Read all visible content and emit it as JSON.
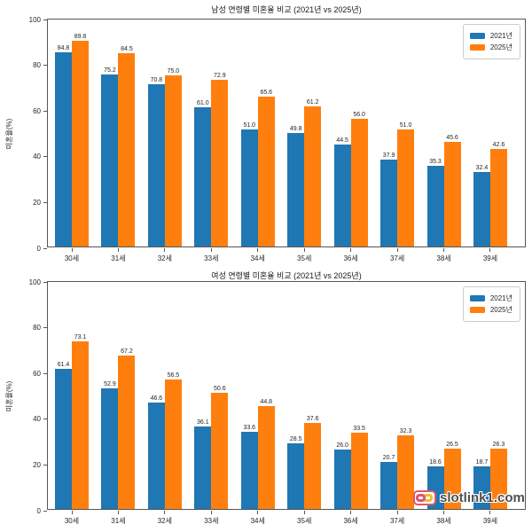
{
  "watermark": {
    "text": "slotlink1.com"
  },
  "colors": {
    "series_2021": "#1f77b4",
    "series_2025": "#ff7f0e",
    "axis": "#565656",
    "text": "#262626"
  },
  "chart_data": [
    {
      "type": "bar",
      "title": "남성 연령별 미혼율 비교 (2021년 vs 2025년)",
      "categories": [
        "30세",
        "31세",
        "32세",
        "33세",
        "34세",
        "35세",
        "36세",
        "37세",
        "38세",
        "39세"
      ],
      "series": [
        {
          "name": "2021년",
          "color": "#1f77b4",
          "values": [
            84.8,
            75.2,
            70.8,
            61.0,
            51.0,
            49.8,
            44.5,
            37.9,
            35.3,
            32.4
          ]
        },
        {
          "name": "2025년",
          "color": "#ff7f0e",
          "values": [
            89.8,
            84.5,
            75.0,
            72.9,
            65.6,
            61.2,
            56.0,
            51.0,
            45.6,
            42.6
          ]
        }
      ],
      "xlabel": "",
      "ylabel": "미혼율(%)",
      "ylim": [
        0,
        100
      ],
      "yticks": [
        0,
        20,
        40,
        60,
        80,
        100
      ],
      "grid": false,
      "legend_position": "upper right",
      "value_labels": true
    },
    {
      "type": "bar",
      "title": "여성 연령별 미혼율 비교 (2021년 vs 2025년)",
      "categories": [
        "30세",
        "31세",
        "32세",
        "33세",
        "34세",
        "35세",
        "36세",
        "37세",
        "38세",
        "39세"
      ],
      "series": [
        {
          "name": "2021년",
          "color": "#1f77b4",
          "values": [
            61.4,
            52.9,
            46.6,
            36.1,
            33.6,
            28.5,
            26.0,
            20.7,
            18.6,
            18.7
          ]
        },
        {
          "name": "2025년",
          "color": "#ff7f0e",
          "values": [
            73.1,
            67.2,
            56.5,
            50.6,
            44.8,
            37.6,
            33.5,
            32.3,
            26.5,
            26.3
          ]
        }
      ],
      "xlabel": "",
      "ylabel": "미혼율(%)",
      "ylim": [
        0,
        100
      ],
      "yticks": [
        0,
        20,
        40,
        60,
        80,
        100
      ],
      "grid": false,
      "legend_position": "upper right",
      "value_labels": true
    }
  ]
}
